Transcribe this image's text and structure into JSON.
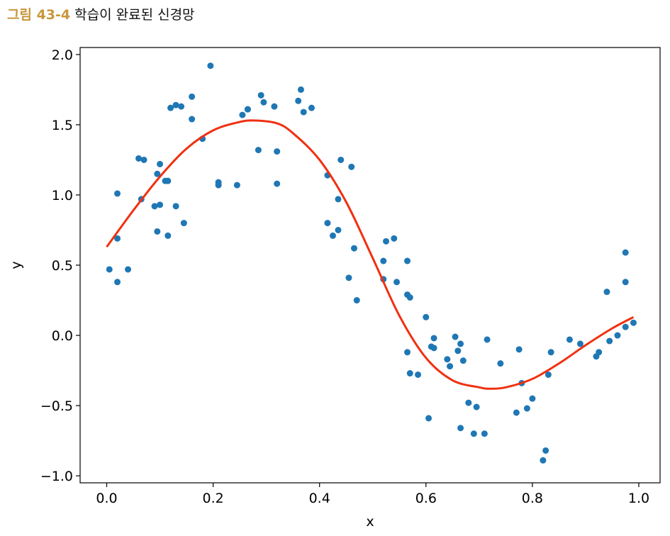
{
  "caption": {
    "number": "그림 43-4",
    "text": "학습이 완료된 신경망"
  },
  "chart_data": {
    "type": "scatter",
    "xlabel": "x",
    "ylabel": "y",
    "xlim": [
      -0.05,
      1.04
    ],
    "ylim": [
      -1.05,
      2.05
    ],
    "xticks": [
      0.0,
      0.2,
      0.4,
      0.6,
      0.8,
      1.0
    ],
    "xtick_labels": [
      "0.0",
      "0.2",
      "0.4",
      "0.6",
      "0.8",
      "1.0"
    ],
    "yticks": [
      -1.0,
      -0.5,
      0.0,
      0.5,
      1.0,
      1.5,
      2.0
    ],
    "ytick_labels": [
      "−1.0",
      "−0.5",
      "0.0",
      "0.5",
      "1.0",
      "1.5",
      "2.0"
    ],
    "grid": false,
    "point_color": "#1f77b4",
    "curve_color": "#f03010",
    "points": [
      [
        0.005,
        0.47
      ],
      [
        0.02,
        0.38
      ],
      [
        0.04,
        0.47
      ],
      [
        0.02,
        0.69
      ],
      [
        0.02,
        1.01
      ],
      [
        0.065,
        0.97
      ],
      [
        0.06,
        1.26
      ],
      [
        0.07,
        1.25
      ],
      [
        0.09,
        0.92
      ],
      [
        0.095,
        1.15
      ],
      [
        0.1,
        1.22
      ],
      [
        0.095,
        0.74
      ],
      [
        0.1,
        0.93
      ],
      [
        0.11,
        1.1
      ],
      [
        0.115,
        1.1
      ],
      [
        0.115,
        0.71
      ],
      [
        0.12,
        1.62
      ],
      [
        0.13,
        1.64
      ],
      [
        0.14,
        1.63
      ],
      [
        0.13,
        0.92
      ],
      [
        0.145,
        0.8
      ],
      [
        0.16,
        1.54
      ],
      [
        0.16,
        1.7
      ],
      [
        0.18,
        1.4
      ],
      [
        0.195,
        1.92
      ],
      [
        0.21,
        1.09
      ],
      [
        0.21,
        1.07
      ],
      [
        0.245,
        1.07
      ],
      [
        0.255,
        1.57
      ],
      [
        0.265,
        1.61
      ],
      [
        0.265,
        1.61
      ],
      [
        0.285,
        1.32
      ],
      [
        0.29,
        1.71
      ],
      [
        0.295,
        1.66
      ],
      [
        0.315,
        1.63
      ],
      [
        0.32,
        1.31
      ],
      [
        0.32,
        1.08
      ],
      [
        0.36,
        1.67
      ],
      [
        0.365,
        1.75
      ],
      [
        0.37,
        1.59
      ],
      [
        0.385,
        1.62
      ],
      [
        0.415,
        1.14
      ],
      [
        0.415,
        0.8
      ],
      [
        0.425,
        0.71
      ],
      [
        0.435,
        0.97
      ],
      [
        0.435,
        0.75
      ],
      [
        0.44,
        1.25
      ],
      [
        0.455,
        0.41
      ],
      [
        0.46,
        1.2
      ],
      [
        0.465,
        0.62
      ],
      [
        0.47,
        0.25
      ],
      [
        0.52,
        0.53
      ],
      [
        0.52,
        0.4
      ],
      [
        0.525,
        0.67
      ],
      [
        0.54,
        0.69
      ],
      [
        0.545,
        0.38
      ],
      [
        0.565,
        0.53
      ],
      [
        0.565,
        0.29
      ],
      [
        0.57,
        0.27
      ],
      [
        0.565,
        -0.12
      ],
      [
        0.57,
        -0.27
      ],
      [
        0.585,
        -0.28
      ],
      [
        0.6,
        0.13
      ],
      [
        0.605,
        -0.59
      ],
      [
        0.61,
        -0.08
      ],
      [
        0.615,
        -0.09
      ],
      [
        0.615,
        -0.02
      ],
      [
        0.64,
        -0.17
      ],
      [
        0.645,
        -0.22
      ],
      [
        0.655,
        -0.01
      ],
      [
        0.66,
        -0.11
      ],
      [
        0.665,
        -0.06
      ],
      [
        0.67,
        -0.18
      ],
      [
        0.665,
        -0.66
      ],
      [
        0.68,
        -0.48
      ],
      [
        0.69,
        -0.7
      ],
      [
        0.695,
        -0.51
      ],
      [
        0.71,
        -0.7
      ],
      [
        0.715,
        -0.03
      ],
      [
        0.74,
        -0.2
      ],
      [
        0.77,
        -0.55
      ],
      [
        0.775,
        -0.1
      ],
      [
        0.78,
        -0.34
      ],
      [
        0.79,
        -0.52
      ],
      [
        0.8,
        -0.45
      ],
      [
        0.82,
        -0.89
      ],
      [
        0.825,
        -0.82
      ],
      [
        0.83,
        -0.28
      ],
      [
        0.835,
        -0.12
      ],
      [
        0.87,
        -0.03
      ],
      [
        0.89,
        -0.06
      ],
      [
        0.92,
        -0.15
      ],
      [
        0.925,
        -0.12
      ],
      [
        0.94,
        0.31
      ],
      [
        0.945,
        -0.04
      ],
      [
        0.96,
        0.0
      ],
      [
        0.975,
        0.38
      ],
      [
        0.975,
        0.06
      ],
      [
        0.975,
        0.59
      ],
      [
        0.99,
        0.09
      ]
    ],
    "fit_curve": [
      [
        0.0,
        0.63
      ],
      [
        0.05,
        0.89
      ],
      [
        0.1,
        1.13
      ],
      [
        0.15,
        1.33
      ],
      [
        0.2,
        1.46
      ],
      [
        0.25,
        1.52
      ],
      [
        0.28,
        1.53
      ],
      [
        0.32,
        1.51
      ],
      [
        0.35,
        1.44
      ],
      [
        0.4,
        1.25
      ],
      [
        0.45,
        0.95
      ],
      [
        0.5,
        0.55
      ],
      [
        0.55,
        0.14
      ],
      [
        0.6,
        -0.16
      ],
      [
        0.65,
        -0.32
      ],
      [
        0.7,
        -0.37
      ],
      [
        0.72,
        -0.38
      ],
      [
        0.75,
        -0.37
      ],
      [
        0.8,
        -0.31
      ],
      [
        0.85,
        -0.2
      ],
      [
        0.9,
        -0.07
      ],
      [
        0.95,
        0.05
      ],
      [
        0.99,
        0.13
      ]
    ]
  }
}
